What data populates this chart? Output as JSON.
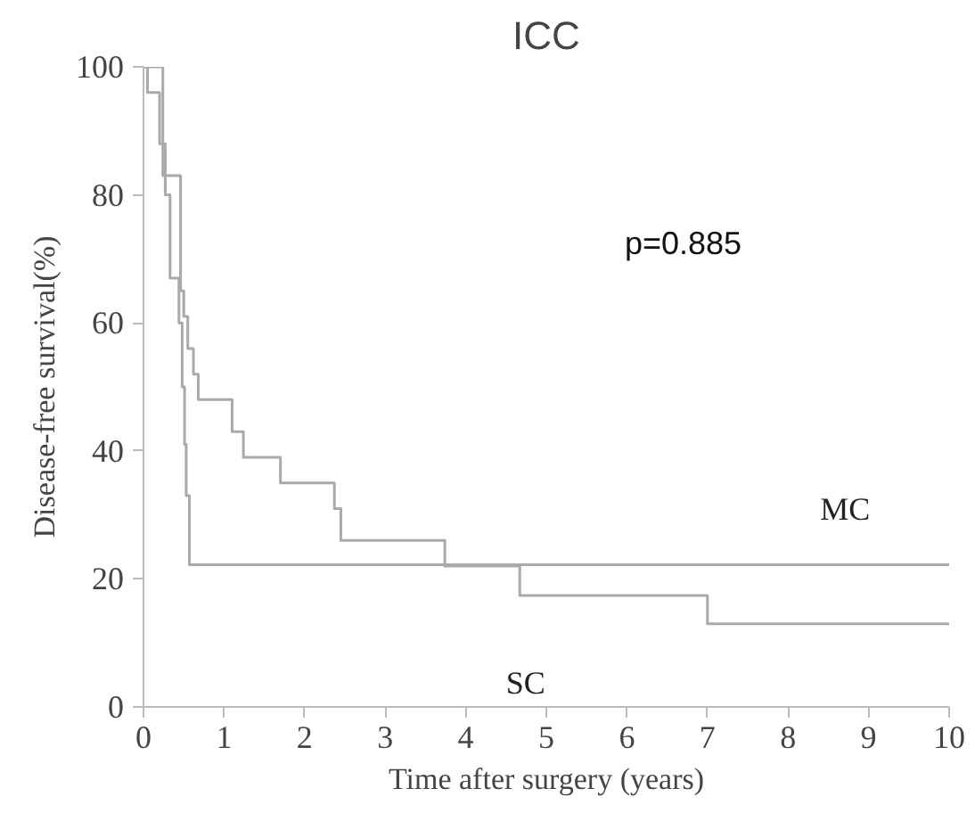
{
  "chart_data": {
    "type": "step",
    "title": "ICC",
    "xlabel": "Time after surgery (years)",
    "ylabel": "Disease-free survival(%)",
    "annotations": [
      "p=0.885"
    ],
    "series": [
      {
        "name": "MC",
        "color": "#aaaaaa",
        "x": [
          0,
          0.05,
          0.2,
          0.27,
          0.33,
          0.44,
          0.48,
          0.51,
          0.53,
          0.57,
          10
        ],
        "values": [
          100,
          96,
          88,
          80,
          67,
          60,
          50,
          41,
          33,
          22.2,
          22.2
        ]
      },
      {
        "name": "SC",
        "color": "#aaaaaa",
        "x": [
          0,
          0.24,
          0.46,
          0.5,
          0.55,
          0.62,
          0.68,
          1.1,
          1.24,
          1.7,
          2.37,
          2.45,
          3.74,
          4.67,
          7.0,
          10
        ],
        "values": [
          100,
          83,
          65,
          61,
          56,
          52,
          48,
          43,
          39,
          35,
          31,
          26,
          22,
          17.4,
          13,
          13
        ]
      }
    ],
    "xlim": [
      0,
      10
    ],
    "ylim": [
      0,
      100
    ],
    "xticks": [
      0,
      1,
      2,
      3,
      4,
      5,
      6,
      7,
      8,
      9,
      10
    ],
    "yticks": [
      0,
      20,
      40,
      60,
      80,
      100
    ],
    "grid": false
  }
}
